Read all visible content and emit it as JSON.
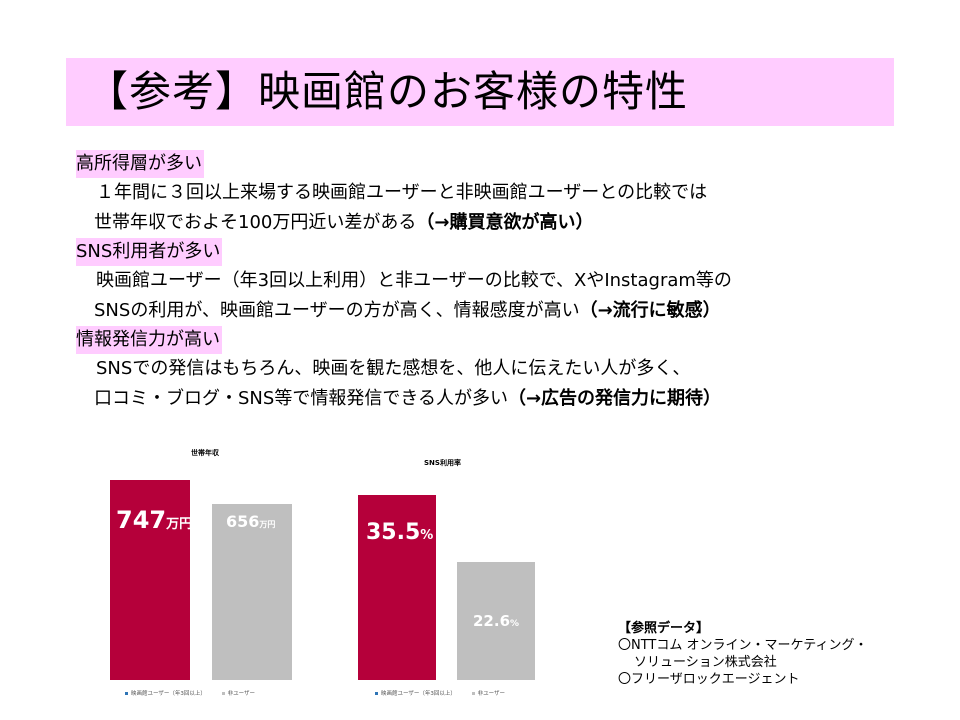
{
  "title": "【参考】映画館のお客様の特性",
  "sections": [
    {
      "heading": "高所得層が多い",
      "lines": [
        {
          "text": "１年間に３回以上来場する映画館ユーザーと非映画館ユーザーとの比較では",
          "bold": ""
        },
        {
          "text": "世帯年収でおよそ100万円近い差がある",
          "bold": "（→購買意欲が高い）"
        }
      ]
    },
    {
      "heading": "SNS利用者が多い",
      "lines": [
        {
          "text": "映画館ユーザー（年3回以上利用）と非ユーザーの比較で、XやInstagram等の",
          "bold": ""
        },
        {
          "text": "SNSの利用が、映画館ユーザーの方が高く、情報感度が高い",
          "bold": "（→流行に敏感）"
        }
      ]
    },
    {
      "heading": "情報発信力が高い",
      "lines": [
        {
          "text": "SNSでの発信はもちろん、映画を観た感想を、他人に伝えたい人が多く、",
          "bold": ""
        },
        {
          "text": "口コミ・ブログ・SNS等で情報発信できる人が多い",
          "bold": "（→広告の発信力に期待）"
        }
      ]
    }
  ],
  "colors": {
    "accent": "#b5003a",
    "gray": "#bfbfbf",
    "highlight": "#ffccff"
  },
  "chart_data": [
    {
      "type": "bar",
      "title": "世帯年収",
      "categories": [
        "映画館ユーザー（年3回以上）",
        "非ユーザー"
      ],
      "values": [
        747,
        656
      ],
      "value_labels": [
        "747",
        "656"
      ],
      "unit": "万円",
      "ylim": [
        0,
        747
      ]
    },
    {
      "type": "bar",
      "title": "SNS利用率",
      "categories": [
        "映画館ユーザー（年3回以上）",
        "非ユーザー"
      ],
      "values": [
        35.5,
        22.6
      ],
      "value_labels": [
        "35.5",
        "22.6"
      ],
      "unit": "%",
      "ylim": [
        0,
        35.5
      ]
    }
  ],
  "reference": {
    "title": "【参照データ】",
    "items": [
      "〇NTTコム オンライン・マーケティング・",
      "ソリューション株式会社",
      "〇フリーザロックエージェント"
    ]
  }
}
